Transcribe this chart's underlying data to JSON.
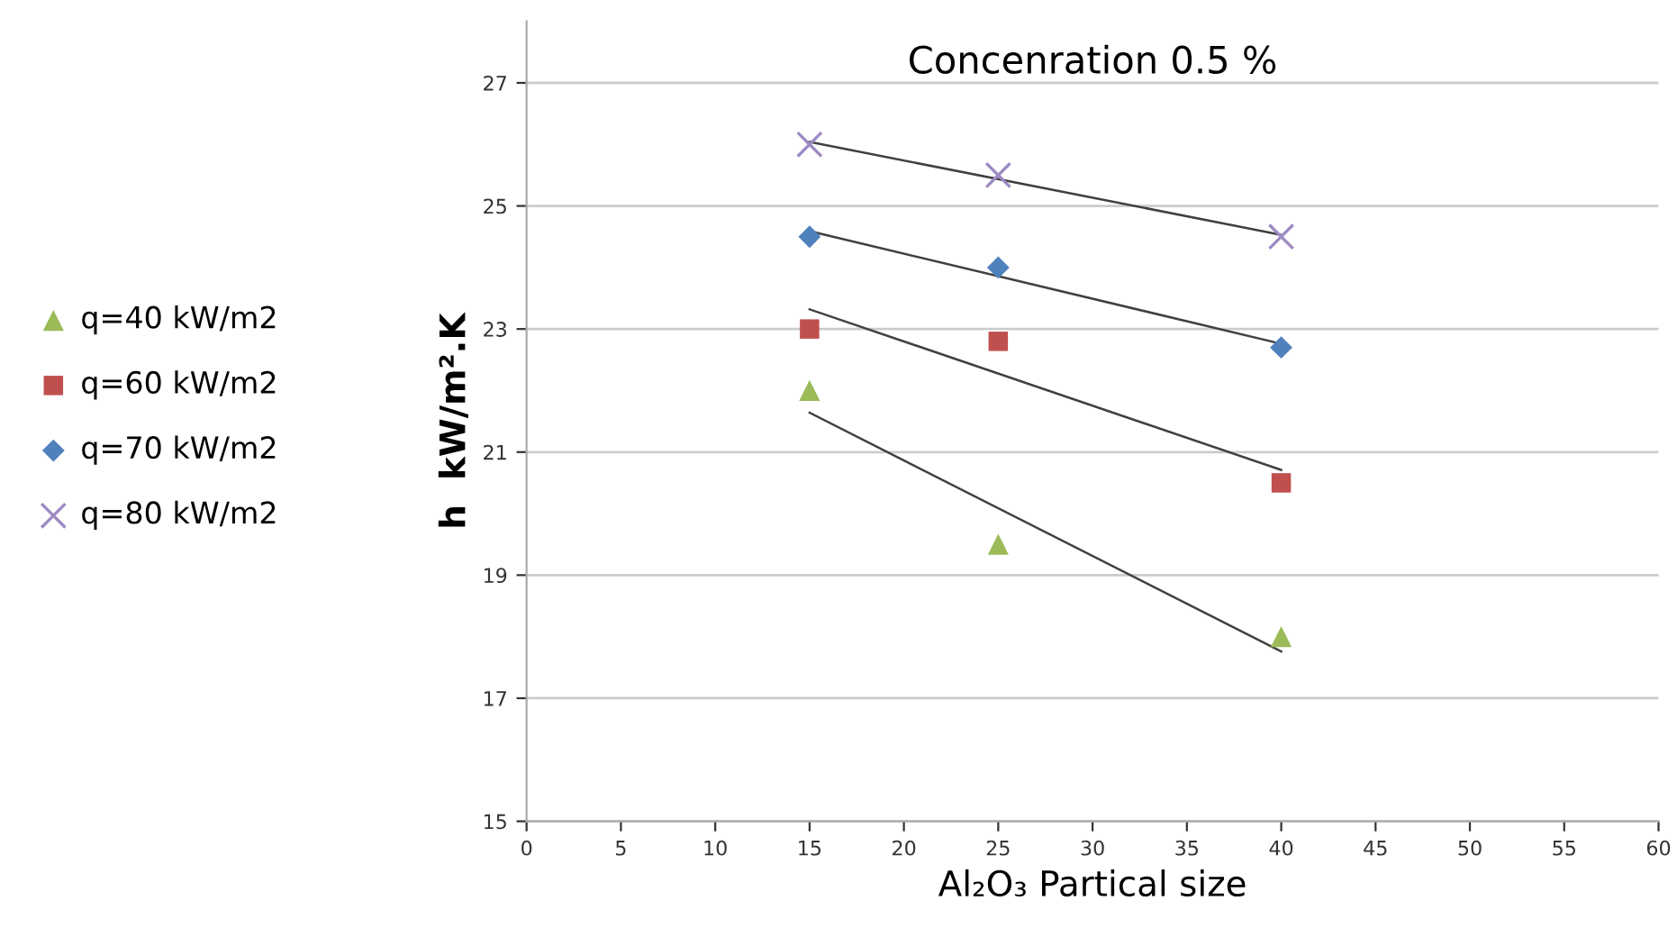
{
  "chart_data": {
    "type": "scatter",
    "title": "Concenration 0.5 %",
    "xlabel": "Al₂O₃ Partical size",
    "ylabel": "h  kW/m².K",
    "xlim": [
      0,
      60
    ],
    "xticks": [
      0,
      5,
      10,
      15,
      20,
      25,
      30,
      35,
      40,
      45,
      50,
      55,
      60
    ],
    "ylim": [
      15,
      28
    ],
    "yticks": [
      15,
      17,
      19,
      21,
      23,
      25,
      27
    ],
    "grid": "y",
    "legend": "left",
    "series": [
      {
        "name": "q=40 kW/m2",
        "color": "#9bbb59",
        "marker": "triangle",
        "x": [
          15,
          25,
          40
        ],
        "values": [
          22.0,
          19.5,
          18.0
        ]
      },
      {
        "name": "q=60 kW/m2",
        "color": "#c0504d",
        "marker": "square",
        "x": [
          15,
          25,
          40
        ],
        "values": [
          23.0,
          22.8,
          20.5
        ]
      },
      {
        "name": "q=70 kW/m2",
        "color": "#4f81bd",
        "marker": "diamond",
        "x": [
          15,
          25,
          40
        ],
        "values": [
          24.5,
          24.0,
          22.7
        ]
      },
      {
        "name": "q=80 kW/m2",
        "color": "#9e8ac2",
        "marker": "cross",
        "x": [
          15,
          25,
          40
        ],
        "values": [
          26.0,
          25.5,
          24.5
        ]
      },
      {
        "type": "line",
        "color": "#404040",
        "marker": "none",
        "x": [
          15,
          40
        ],
        "values": [
          21.64,
          17.76
        ]
      },
      {
        "type": "line",
        "color": "#404040",
        "marker": "none",
        "x": [
          15,
          40
        ],
        "values": [
          23.32,
          20.71
        ]
      },
      {
        "type": "line",
        "color": "#404040",
        "marker": "none",
        "x": [
          15,
          40
        ],
        "values": [
          24.59,
          22.76
        ]
      },
      {
        "type": "line",
        "color": "#404040",
        "marker": "none",
        "x": [
          15,
          40
        ],
        "values": [
          26.04,
          24.53
        ]
      }
    ]
  }
}
